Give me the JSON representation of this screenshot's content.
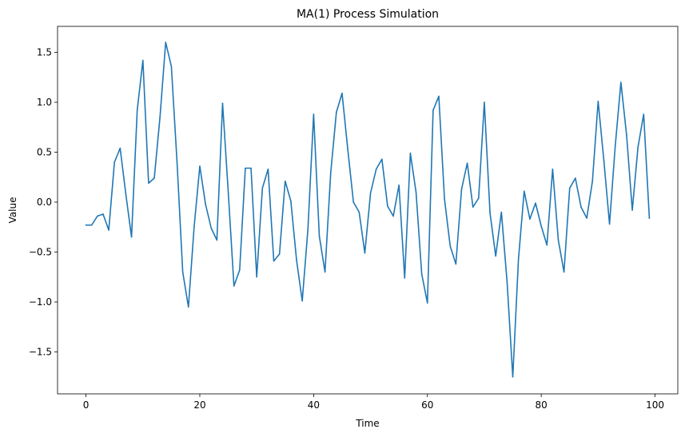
{
  "chart_data": {
    "type": "line",
    "title": "MA(1) Process Simulation",
    "xlabel": "Time",
    "ylabel": "Value",
    "xlim": [
      -5,
      104
    ],
    "ylim": [
      -1.92,
      1.76
    ],
    "xticks": [
      0,
      20,
      40,
      60,
      80,
      100
    ],
    "xtick_labels": [
      "0",
      "20",
      "40",
      "60",
      "80",
      "100"
    ],
    "yticks": [
      -1.5,
      -1.0,
      -0.5,
      0.0,
      0.5,
      1.0,
      1.5
    ],
    "ytick_labels": [
      "−1.5",
      "−1.0",
      "−0.5",
      "0.0",
      "0.5",
      "1.0",
      "1.5"
    ],
    "grid": false,
    "series": [
      {
        "name": "MA(1)",
        "color": "#1f77b4",
        "x": [
          0,
          1,
          2,
          3,
          4,
          5,
          6,
          7,
          8,
          9,
          10,
          11,
          12,
          13,
          14,
          15,
          16,
          17,
          18,
          19,
          20,
          21,
          22,
          23,
          24,
          25,
          26,
          27,
          28,
          29,
          30,
          31,
          32,
          33,
          34,
          35,
          36,
          37,
          38,
          39,
          40,
          41,
          42,
          43,
          44,
          45,
          46,
          47,
          48,
          49,
          50,
          51,
          52,
          53,
          54,
          55,
          56,
          57,
          58,
          59,
          60,
          61,
          62,
          63,
          64,
          65,
          66,
          67,
          68,
          69,
          70,
          71,
          72,
          73,
          74,
          75,
          76,
          77,
          78,
          79,
          80,
          81,
          82,
          83,
          84,
          85,
          86,
          87,
          88,
          89,
          90,
          91,
          92,
          93,
          94,
          95,
          96,
          97,
          98,
          99
        ],
        "values": [
          -0.23,
          -0.23,
          -0.14,
          -0.12,
          -0.28,
          0.4,
          0.54,
          0.08,
          -0.35,
          0.92,
          1.42,
          0.19,
          0.24,
          0.85,
          1.6,
          1.36,
          0.4,
          -0.7,
          -1.05,
          -0.25,
          0.36,
          -0.02,
          -0.26,
          -0.38,
          0.99,
          0.1,
          -0.84,
          -0.68,
          0.34,
          0.34,
          -0.75,
          0.14,
          0.33,
          -0.59,
          -0.52,
          0.21,
          0.01,
          -0.58,
          -0.99,
          -0.27,
          0.88,
          -0.34,
          -0.7,
          0.29,
          0.9,
          1.09,
          0.53,
          0.0,
          -0.1,
          -0.51,
          0.09,
          0.33,
          0.43,
          -0.04,
          -0.14,
          0.17,
          -0.76,
          0.49,
          0.1,
          -0.72,
          -1.01,
          0.92,
          1.06,
          0.03,
          -0.44,
          -0.62,
          0.13,
          0.39,
          -0.05,
          0.04,
          1.0,
          -0.11,
          -0.54,
          -0.1,
          -0.8,
          -1.75,
          -0.57,
          0.11,
          -0.17,
          -0.01,
          -0.24,
          -0.43,
          0.33,
          -0.38,
          -0.7,
          0.14,
          0.24,
          -0.05,
          -0.16,
          0.21,
          1.01,
          0.42,
          -0.22,
          0.56,
          1.2,
          0.67,
          -0.08,
          0.55,
          0.88,
          -0.16
        ]
      }
    ]
  }
}
